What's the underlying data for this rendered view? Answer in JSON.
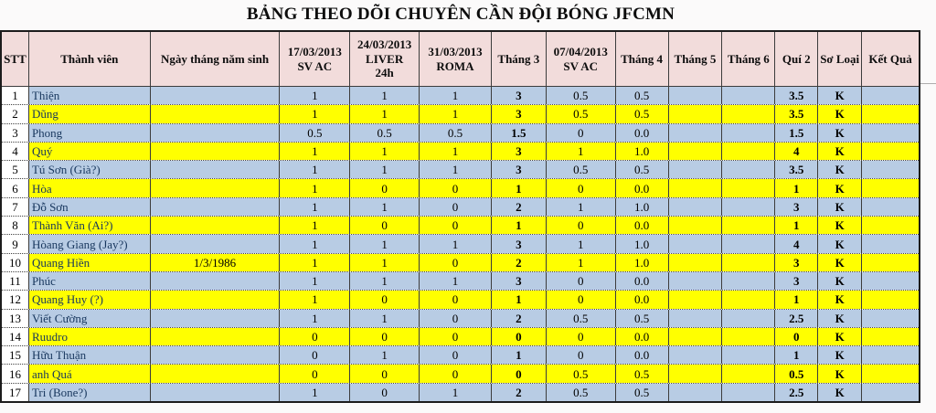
{
  "title": "BẢNG THEO DÕI CHUYÊN CẦN ĐỘI BÓNG JFCMN",
  "colors": {
    "header_bg": "#f2dcdb",
    "row_blue": "#b8cce4",
    "row_yellow": "#ffff00",
    "stt_bg": "#ffffff",
    "indicator_green": "#168a3a"
  },
  "table": {
    "columns": [
      {
        "label": "STT"
      },
      {
        "label": "Thành viên"
      },
      {
        "label": "Ngày tháng năm sinh"
      },
      {
        "label": "17/03/2013\nSV AC"
      },
      {
        "label": "24/03/2013\nLIVER\n24h"
      },
      {
        "label": "31/03/2013\nROMA"
      },
      {
        "label": "Tháng 3"
      },
      {
        "label": "07/04/2013\nSV AC"
      },
      {
        "label": "Tháng 4"
      },
      {
        "label": "Tháng 5"
      },
      {
        "label": "Tháng 6"
      },
      {
        "label": "Quí 2"
      },
      {
        "label": "Sơ Loại"
      },
      {
        "label": "Kết Quả"
      }
    ],
    "rows": [
      {
        "stt": "1",
        "name": "Thiện",
        "birth": "",
        "highlight": "blue",
        "indicator": false,
        "values": [
          "1",
          "1",
          "1",
          "3",
          "0.5",
          "0.5",
          "",
          "",
          "3.5",
          "K",
          ""
        ]
      },
      {
        "stt": "2",
        "name": "Dũng",
        "birth": "",
        "highlight": "yellow",
        "indicator": false,
        "values": [
          "1",
          "1",
          "1",
          "3",
          "0.5",
          "0.5",
          "",
          "",
          "3.5",
          "K",
          ""
        ]
      },
      {
        "stt": "3",
        "name": "Phong",
        "birth": "",
        "highlight": "blue",
        "indicator": false,
        "values": [
          "0.5",
          "0.5",
          "0.5",
          "1.5",
          "0",
          "0.0",
          "",
          "",
          "1.5",
          "K",
          ""
        ]
      },
      {
        "stt": "4",
        "name": "Quý",
        "birth": "",
        "highlight": "yellow",
        "indicator": false,
        "values": [
          "1",
          "1",
          "1",
          "3",
          "1",
          "1.0",
          "",
          "",
          "4",
          "K",
          ""
        ]
      },
      {
        "stt": "5",
        "name": "Tú Sơn (Già?)",
        "birth": "",
        "highlight": "blue",
        "indicator": false,
        "values": [
          "1",
          "1",
          "1",
          "3",
          "0.5",
          "0.5",
          "",
          "",
          "3.5",
          "K",
          ""
        ]
      },
      {
        "stt": "6",
        "name": "Hòa",
        "birth": "",
        "highlight": "yellow",
        "indicator": false,
        "values": [
          "1",
          "0",
          "0",
          "1",
          "0",
          "0.0",
          "",
          "",
          "1",
          "K",
          ""
        ]
      },
      {
        "stt": "7",
        "name": "Đỗ Sơn",
        "birth": "",
        "highlight": "blue",
        "indicator": false,
        "values": [
          "1",
          "1",
          "0",
          "2",
          "1",
          "1.0",
          "",
          "",
          "3",
          "K",
          ""
        ]
      },
      {
        "stt": "8",
        "name": "Thành Văn (Ai?)",
        "birth": "",
        "highlight": "yellow",
        "indicator": false,
        "values": [
          "1",
          "0",
          "0",
          "1",
          "0",
          "0.0",
          "",
          "",
          "1",
          "K",
          ""
        ]
      },
      {
        "stt": "9",
        "name": "Hòang Giang (Jay?)",
        "birth": "",
        "highlight": "blue",
        "indicator": false,
        "values": [
          "1",
          "1",
          "1",
          "3",
          "1",
          "1.0",
          "",
          "",
          "4",
          "K",
          ""
        ]
      },
      {
        "stt": "10",
        "name": "Quang Hiền",
        "birth": "1/3/1986",
        "highlight": "yellow",
        "indicator": true,
        "values": [
          "1",
          "1",
          "0",
          "2",
          "1",
          "1.0",
          "",
          "",
          "3",
          "K",
          ""
        ]
      },
      {
        "stt": "11",
        "name": "Phúc",
        "birth": "",
        "highlight": "blue",
        "indicator": false,
        "values": [
          "1",
          "1",
          "1",
          "3",
          "0",
          "0.0",
          "",
          "",
          "3",
          "K",
          ""
        ]
      },
      {
        "stt": "12",
        "name": "Quang Huy (?)",
        "birth": "",
        "highlight": "yellow",
        "indicator": false,
        "values": [
          "1",
          "0",
          "0",
          "1",
          "0",
          "0.0",
          "",
          "",
          "1",
          "K",
          ""
        ]
      },
      {
        "stt": "13",
        "name": "Viết Cường",
        "birth": "",
        "highlight": "blue",
        "indicator": false,
        "values": [
          "1",
          "1",
          "0",
          "2",
          "0.5",
          "0.5",
          "",
          "",
          "2.5",
          "K",
          ""
        ]
      },
      {
        "stt": "14",
        "name": "Ruudro",
        "birth": "",
        "highlight": "yellow",
        "indicator": false,
        "values": [
          "0",
          "0",
          "0",
          "0",
          "0",
          "0.0",
          "",
          "",
          "0",
          "K",
          ""
        ]
      },
      {
        "stt": "15",
        "name": "Hữu Thuận",
        "birth": "",
        "highlight": "blue",
        "indicator": false,
        "values": [
          "0",
          "1",
          "0",
          "1",
          "0",
          "0.0",
          "",
          "",
          "1",
          "K",
          ""
        ]
      },
      {
        "stt": "16",
        "name": "anh Quá",
        "birth": "",
        "highlight": "yellow",
        "indicator": false,
        "values": [
          "0",
          "0",
          "0",
          "0",
          "0.5",
          "0.5",
          "",
          "",
          "0.5",
          "K",
          ""
        ]
      },
      {
        "stt": "17",
        "name": "Tri (Bone?)",
        "birth": "",
        "highlight": "blue",
        "indicator": false,
        "values": [
          "1",
          "0",
          "1",
          "2",
          "0.5",
          "0.5",
          "",
          "",
          "2.5",
          "K",
          ""
        ]
      }
    ]
  }
}
